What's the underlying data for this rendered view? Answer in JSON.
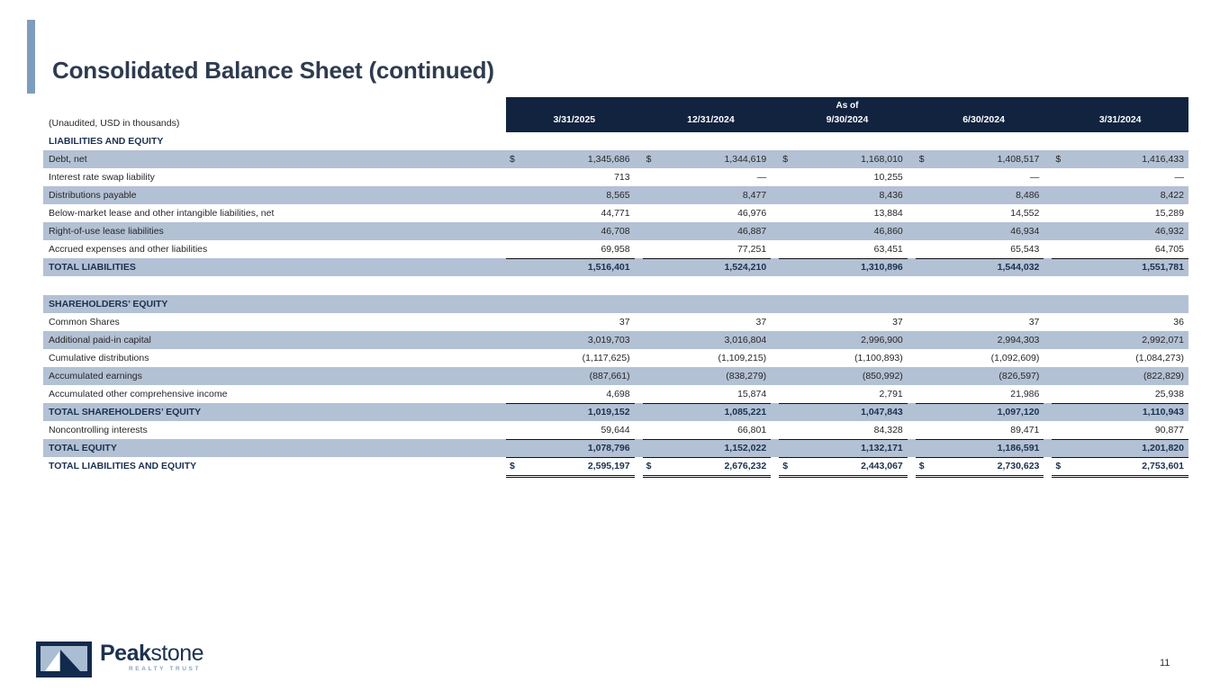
{
  "page": {
    "title": "Consolidated Balance Sheet (continued)",
    "page_number": "11"
  },
  "colors": {
    "header_bg": "#11233f",
    "row_shade": "#b3c1d4",
    "accent_bar": "#7e9cbe",
    "navy_text": "#1b3150"
  },
  "table": {
    "note": "(Unaudited, USD in thousands)",
    "header": {
      "as_of_label": "As of",
      "columns": [
        "3/31/2025",
        "12/31/2024",
        "9/30/2024",
        "6/30/2024",
        "3/31/2024"
      ]
    },
    "rows": [
      {
        "type": "section",
        "label": "LIABILITIES AND EQUITY",
        "shaded": false
      },
      {
        "type": "data",
        "label": "Debt, net",
        "shaded": true,
        "dollar": true,
        "values": [
          "1,345,686",
          "1,344,619",
          "1,168,010",
          "1,408,517",
          "1,416,433"
        ]
      },
      {
        "type": "data",
        "label": "Interest rate swap liability",
        "shaded": false,
        "values": [
          "713",
          "—",
          "10,255",
          "—",
          "—"
        ]
      },
      {
        "type": "data",
        "label": "Distributions payable",
        "shaded": true,
        "values": [
          "8,565",
          "8,477",
          "8,436",
          "8,486",
          "8,422"
        ]
      },
      {
        "type": "data",
        "label": "Below-market lease and other intangible liabilities, net",
        "shaded": false,
        "values": [
          "44,771",
          "46,976",
          "13,884",
          "14,552",
          "15,289"
        ]
      },
      {
        "type": "data",
        "label": "Right-of-use lease liabilities",
        "shaded": true,
        "values": [
          "46,708",
          "46,887",
          "46,860",
          "46,934",
          "46,932"
        ]
      },
      {
        "type": "data",
        "label": "Accrued expenses and other liabilities",
        "shaded": false,
        "underline": "bottom",
        "values": [
          "69,958",
          "77,251",
          "63,451",
          "65,543",
          "64,705"
        ]
      },
      {
        "type": "total",
        "label": "TOTAL LIABILITIES",
        "shaded": true,
        "values": [
          "1,516,401",
          "1,524,210",
          "1,310,896",
          "1,544,032",
          "1,551,781"
        ]
      },
      {
        "type": "spacer"
      },
      {
        "type": "section",
        "label": "SHAREHOLDERS’ EQUITY",
        "shaded": true
      },
      {
        "type": "data",
        "label": "Common Shares",
        "shaded": false,
        "values": [
          "37",
          "37",
          "37",
          "37",
          "36"
        ]
      },
      {
        "type": "data",
        "label": "Additional paid-in capital",
        "shaded": true,
        "values": [
          "3,019,703",
          "3,016,804",
          "2,996,900",
          "2,994,303",
          "2,992,071"
        ]
      },
      {
        "type": "data",
        "label": "Cumulative distributions",
        "shaded": false,
        "values": [
          "(1,117,625)",
          "(1,109,215)",
          "(1,100,893)",
          "(1,092,609)",
          "(1,084,273)"
        ]
      },
      {
        "type": "data",
        "label": "Accumulated earnings",
        "shaded": true,
        "values": [
          "(887,661)",
          "(838,279)",
          "(850,992)",
          "(826,597)",
          "(822,829)"
        ]
      },
      {
        "type": "data",
        "label": "Accumulated other comprehensive income",
        "shaded": false,
        "underline": "bottom",
        "values": [
          "4,698",
          "15,874",
          "2,791",
          "21,986",
          "25,938"
        ]
      },
      {
        "type": "total",
        "label": "TOTAL SHAREHOLDERS’ EQUITY",
        "shaded": true,
        "values": [
          "1,019,152",
          "1,085,221",
          "1,047,843",
          "1,097,120",
          "1,110,943"
        ]
      },
      {
        "type": "data",
        "label": "Noncontrolling interests",
        "shaded": false,
        "underline": "bottom",
        "values": [
          "59,644",
          "66,801",
          "84,328",
          "89,471",
          "90,877"
        ]
      },
      {
        "type": "total",
        "label": "TOTAL EQUITY",
        "shaded": true,
        "underline": "bottom",
        "values": [
          "1,078,796",
          "1,152,022",
          "1,132,171",
          "1,186,591",
          "1,201,820"
        ]
      },
      {
        "type": "grand",
        "label": "TOTAL LIABILITIES AND EQUITY",
        "shaded": false,
        "dollar": true,
        "double_underline": true,
        "values": [
          "2,595,197",
          "2,676,232",
          "2,443,067",
          "2,730,623",
          "2,753,601"
        ]
      }
    ]
  },
  "logo": {
    "name_bold": "Peak",
    "name_regular": "stone",
    "tagline": "REALTY TRUST"
  }
}
